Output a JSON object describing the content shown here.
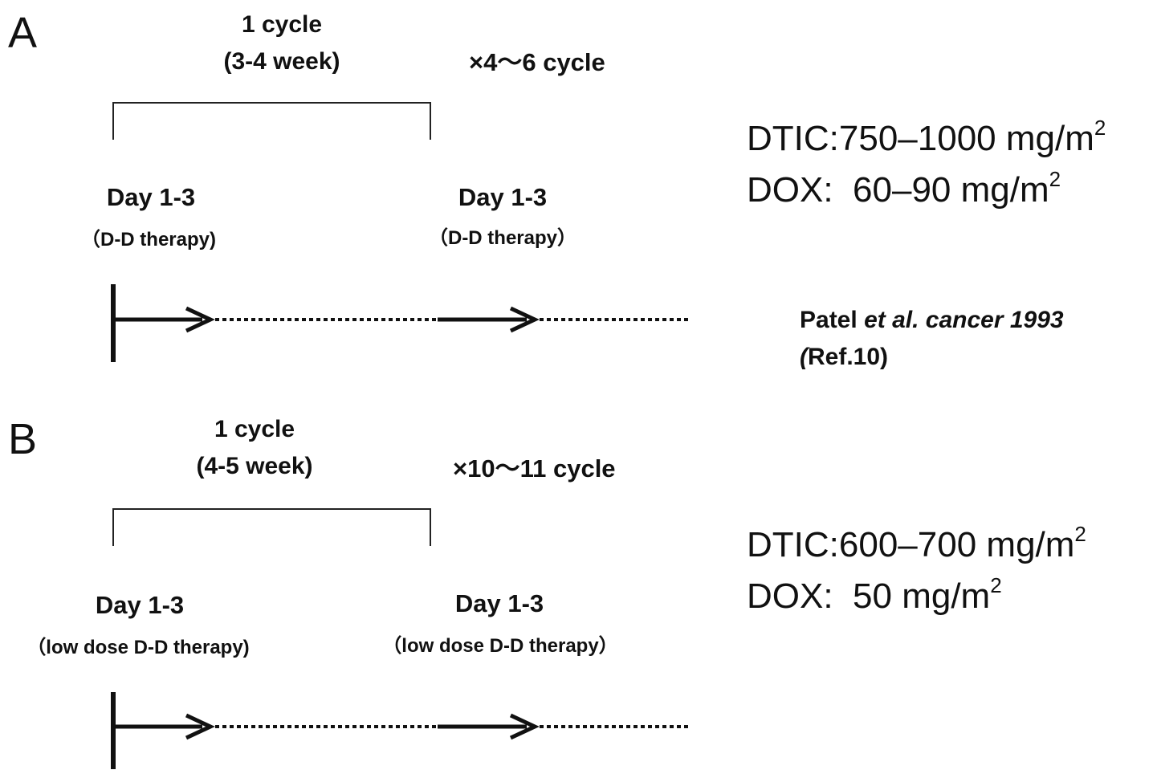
{
  "panel_a": {
    "label": "A",
    "cycle_line1": "1 cycle",
    "cycle_line2": "(3-4 week)",
    "repeat": "×4～6 cycle",
    "day1": "Day 1-3",
    "therapy1": "（D-D therapy)",
    "day2": "Day 1-3",
    "therapy2": "（D-D therapy）",
    "dtic_label": "DTIC",
    "dtic_value": "750–1000 mg/m",
    "dox_label": "DOX",
    "dox_value": "60–90 mg/m",
    "superscript": "2",
    "ref_author": "Patel",
    "ref_italic": "et al. cancer 1993",
    "ref_open": "(",
    "ref_line2": "Ref.10)"
  },
  "panel_b": {
    "label": "B",
    "cycle_line1": "1 cycle",
    "cycle_line2": "(4-5 week)",
    "repeat": "×10～11 cycle",
    "day1": "Day 1-3",
    "therapy1": "（low dose D-D therapy)",
    "day2": "Day 1-3",
    "therapy2": "（low dose D-D therapy）",
    "dtic_label": "DTIC",
    "dtic_value": "600–700 mg/m",
    "dox_label": "DOX",
    "dox_value": "50 mg/m",
    "superscript": "2"
  }
}
